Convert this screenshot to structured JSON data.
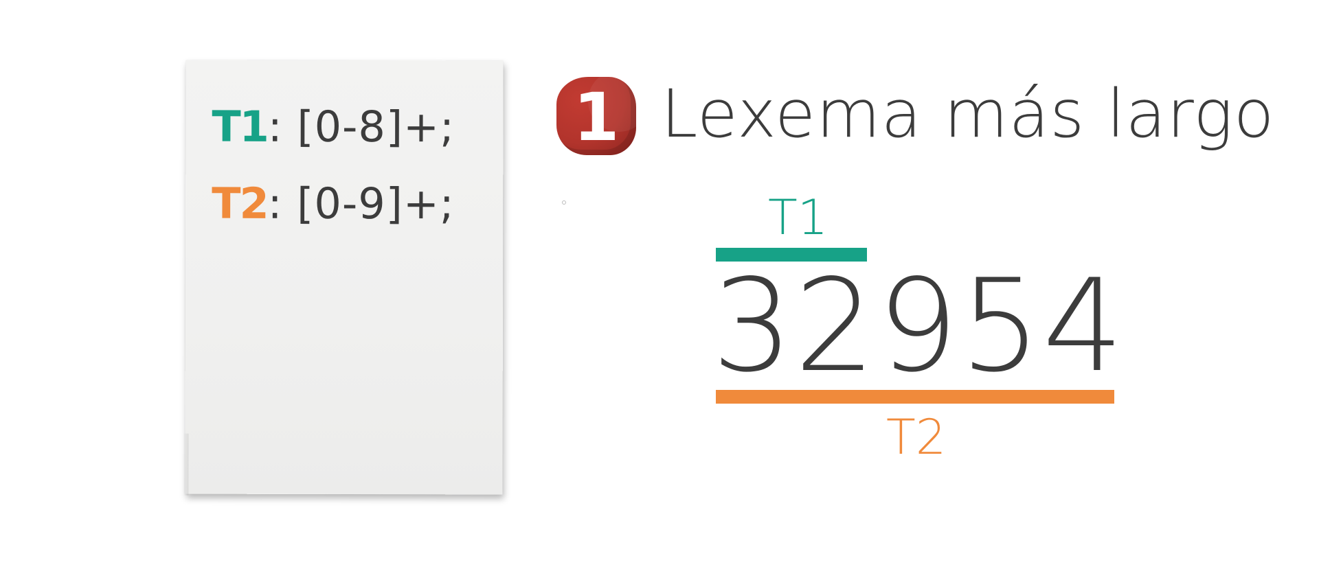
{
  "colors": {
    "t1": "#17a287",
    "t2": "#f08a3b",
    "text": "#3c3c3c",
    "badge": "#b2342c",
    "card": "#f1f1f0"
  },
  "note": {
    "rules": [
      {
        "name": "T1",
        "separator": ":",
        "pattern": " [0-8]+;"
      },
      {
        "name": "T2",
        "separator": ":",
        "pattern": " [0-9]+;"
      }
    ]
  },
  "header": {
    "badge_number": "1",
    "title": "Lexema más largo"
  },
  "diagram": {
    "input": "32954",
    "t1_label": "T1",
    "t2_label": "T2",
    "t1_match_chars": 2,
    "t2_match_chars": 5
  }
}
